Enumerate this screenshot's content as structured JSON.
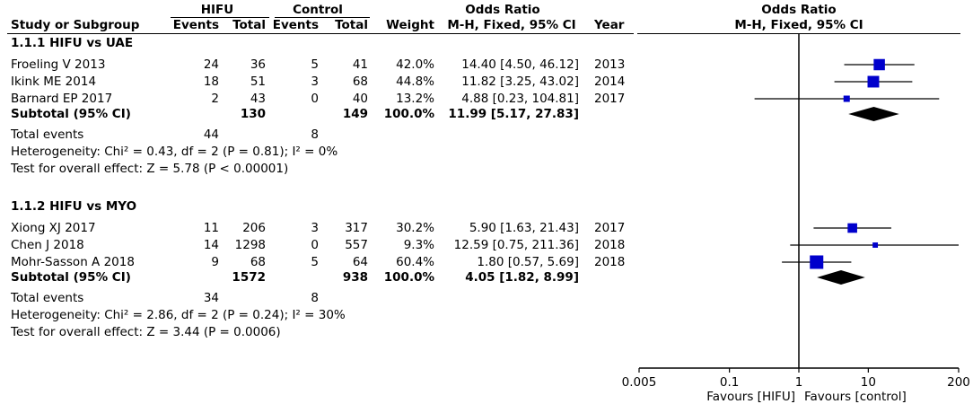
{
  "headers": {
    "group1": "HIFU",
    "group2": "Control",
    "or_header_left": "Odds Ratio",
    "or_subheader_left": "M-H, Fixed, 95% CI",
    "or_header_right": "Odds Ratio",
    "or_subheader_right": "M-H, Fixed, 95% CI",
    "study": "Study or Subgroup",
    "events1": "Events",
    "total1": "Total",
    "events2": "Events",
    "total2": "Total",
    "weight": "Weight",
    "year": "Year"
  },
  "subgroups": [
    {
      "title": "1.1.1 HIFU vs UAE",
      "studies": [
        {
          "name": "Froeling V 2013",
          "events1": "24",
          "total1": "36",
          "events2": "5",
          "total2": "41",
          "weight": "42.0%",
          "ci_text": "14.40 [4.50, 46.12]",
          "year": "2013",
          "or": 14.4,
          "lo": 4.5,
          "hi": 46.12,
          "w": 42.0
        },
        {
          "name": "Ikink ME 2014",
          "events1": "18",
          "total1": "51",
          "events2": "3",
          "total2": "68",
          "weight": "44.8%",
          "ci_text": "11.82 [3.25, 43.02]",
          "year": "2014",
          "or": 11.82,
          "lo": 3.25,
          "hi": 43.02,
          "w": 44.8
        },
        {
          "name": "Barnard EP 2017",
          "events1": "2",
          "total1": "43",
          "events2": "0",
          "total2": "40",
          "weight": "13.2%",
          "ci_text": "4.88 [0.23, 104.81]",
          "year": "2017",
          "or": 4.88,
          "lo": 0.23,
          "hi": 104.81,
          "w": 13.2
        }
      ],
      "subtotal": {
        "label": "Subtotal (95% CI)",
        "total1": "130",
        "total2": "149",
        "weight": "100.0%",
        "ci_text": "11.99 [5.17, 27.83]",
        "or": 11.99,
        "lo": 5.17,
        "hi": 27.83
      },
      "total_events": {
        "label": "Total events",
        "events1": "44",
        "events2": "8"
      },
      "heterogeneity": "Heterogeneity: Chi² = 0.43, df = 2 (P = 0.81); I² = 0%",
      "overall": "Test for overall effect: Z = 5.78 (P < 0.00001)"
    },
    {
      "title": "1.1.2 HIFU vs MYO",
      "studies": [
        {
          "name": "Xiong XJ 2017",
          "events1": "11",
          "total1": "206",
          "events2": "3",
          "total2": "317",
          "weight": "30.2%",
          "ci_text": "5.90 [1.63, 21.43]",
          "year": "2017",
          "or": 5.9,
          "lo": 1.63,
          "hi": 21.43,
          "w": 30.2
        },
        {
          "name": "Chen J 2018",
          "events1": "14",
          "total1": "1298",
          "events2": "0",
          "total2": "557",
          "weight": "9.3%",
          "ci_text": "12.59 [0.75, 211.36]",
          "year": "2018",
          "or": 12.59,
          "lo": 0.75,
          "hi": 211.36,
          "w": 9.3
        },
        {
          "name": "Mohr-Sasson A 2018",
          "events1": "9",
          "total1": "68",
          "events2": "5",
          "total2": "64",
          "weight": "60.4%",
          "ci_text": "1.80 [0.57, 5.69]",
          "year": "2018",
          "or": 1.8,
          "lo": 0.57,
          "hi": 5.69,
          "w": 60.4
        }
      ],
      "subtotal": {
        "label": "Subtotal (95% CI)",
        "total1": "1572",
        "total2": "938",
        "weight": "100.0%",
        "ci_text": "4.05 [1.82, 8.99]",
        "or": 4.05,
        "lo": 1.82,
        "hi": 8.99
      },
      "total_events": {
        "label": "Total events",
        "events1": "34",
        "events2": "8"
      },
      "heterogeneity": "Heterogeneity: Chi² = 2.86, df = 2 (P = 0.24); I² = 30%",
      "overall": "Test for overall effect: Z = 3.44 (P = 0.0006)"
    }
  ],
  "axis": {
    "scale": "log",
    "ticks": [
      0.005,
      0.1,
      1,
      10,
      200
    ],
    "tick_labels": [
      "0.005",
      "0.1",
      "1",
      "10",
      "200"
    ],
    "favours_left": "Favours [HIFU]",
    "favours_right": "Favours [control]"
  },
  "colors": {
    "square": "#0000cc",
    "diamond": "#000000",
    "line": "#000000"
  },
  "chart_data": {
    "type": "forest",
    "scale": "log",
    "xlim": [
      0.005,
      200
    ],
    "null_line": 1,
    "series": [
      {
        "name": "Froeling V 2013",
        "or": 14.4,
        "lo": 4.5,
        "hi": 46.12,
        "weight": 42.0
      },
      {
        "name": "Ikink ME 2014",
        "or": 11.82,
        "lo": 3.25,
        "hi": 43.02,
        "weight": 44.8
      },
      {
        "name": "Barnard EP 2017",
        "or": 4.88,
        "lo": 0.23,
        "hi": 104.81,
        "weight": 13.2
      },
      {
        "name": "Subtotal (95% CI)",
        "or": 11.99,
        "lo": 5.17,
        "hi": 27.83
      },
      {
        "name": "Xiong XJ 2017",
        "or": 5.9,
        "lo": 1.63,
        "hi": 21.43,
        "weight": 30.2
      },
      {
        "name": "Chen J 2018",
        "or": 12.59,
        "lo": 0.75,
        "hi": 211.36,
        "weight": 9.3
      },
      {
        "name": "Mohr-Sasson A 2018",
        "or": 1.8,
        "lo": 0.57,
        "hi": 5.69,
        "weight": 60.4
      },
      {
        "name": "Subtotal (95% CI)",
        "or": 4.05,
        "lo": 1.82,
        "hi": 8.99
      }
    ]
  }
}
